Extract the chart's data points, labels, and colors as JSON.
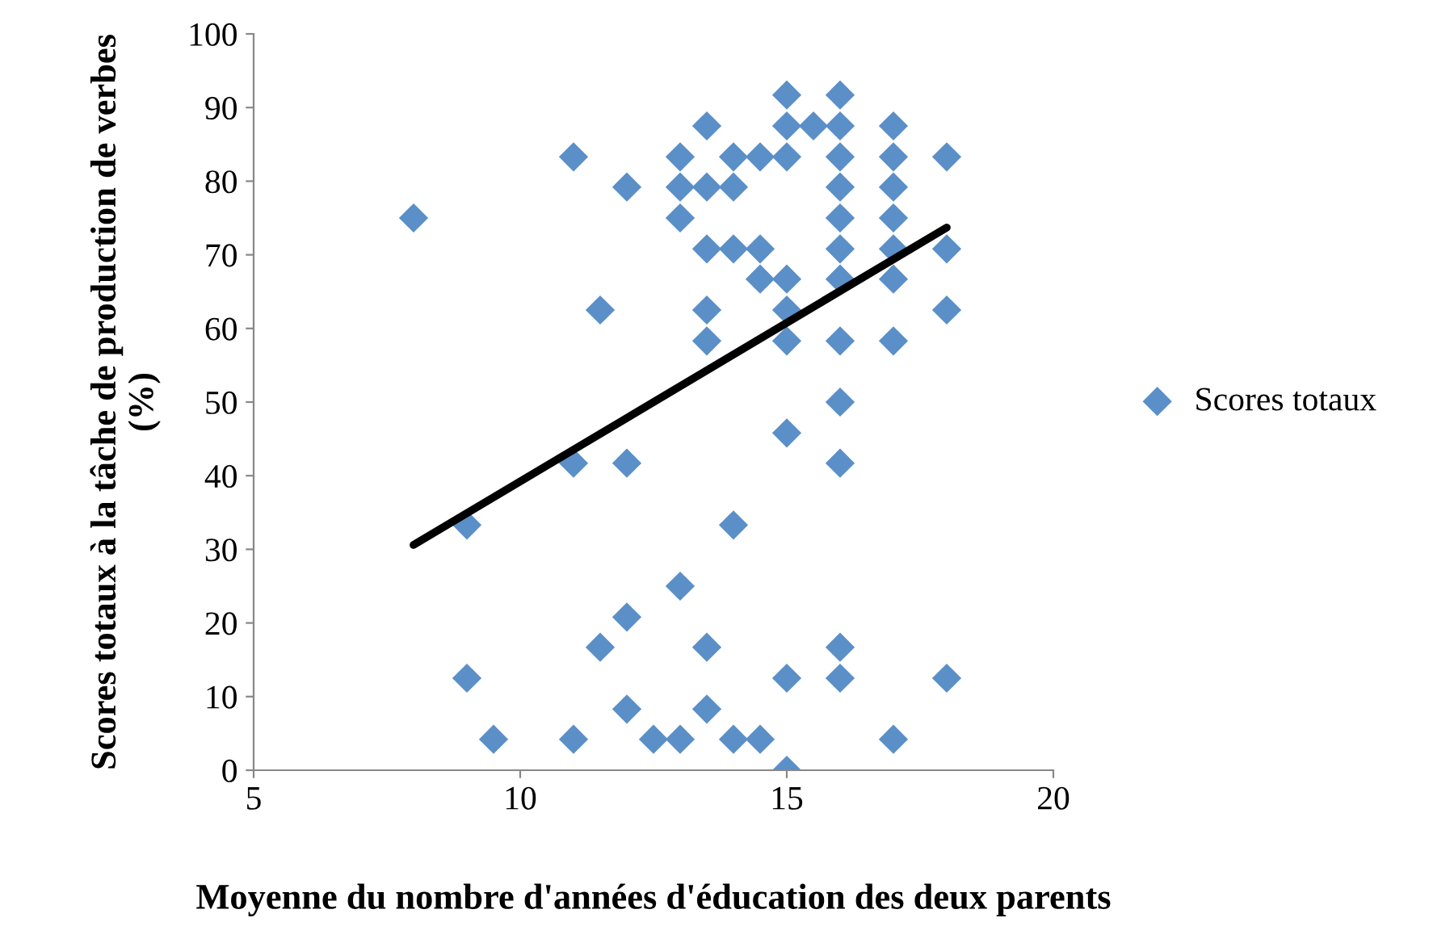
{
  "chart_data": {
    "type": "scatter",
    "xlabel": "Moyenne du nombre d'années d'éducation des deux parents",
    "ylabel": "Scores totaux à la tâche de production de verbes (%)",
    "xlim": [
      5,
      20
    ],
    "xticks": [
      5,
      10,
      15,
      20
    ],
    "ylim": [
      0,
      100
    ],
    "yticks": [
      0,
      10,
      20,
      30,
      40,
      50,
      60,
      70,
      80,
      90,
      100
    ],
    "grid": false,
    "legend": "right",
    "series": [
      {
        "name": "Scores totaux",
        "color": "#5b8fc7",
        "marker": "diamond",
        "x": [
          8,
          9,
          9,
          9.5,
          11,
          11,
          11,
          11.5,
          11.5,
          12,
          12,
          12,
          12,
          12.5,
          13,
          13,
          13,
          13,
          13,
          13.5,
          13.5,
          13.5,
          13.5,
          13.5,
          13.5,
          13.5,
          14,
          14,
          14,
          14,
          14,
          14.5,
          14.5,
          14.5,
          14.5,
          15,
          15,
          15,
          15,
          15,
          15,
          15,
          15,
          15,
          15.5,
          16,
          16,
          16,
          16,
          16,
          16,
          16,
          16,
          16,
          16,
          16,
          16,
          17,
          17,
          17,
          17,
          17,
          17,
          17,
          17,
          18,
          18,
          18,
          18
        ],
        "values": [
          75,
          33.3,
          12.5,
          4.2,
          83.3,
          41.7,
          4.2,
          62.5,
          16.7,
          79.2,
          41.7,
          20.8,
          8.3,
          4.2,
          83.3,
          79.2,
          75,
          25,
          4.2,
          87.5,
          79.2,
          70.8,
          62.5,
          58.3,
          16.7,
          8.3,
          83.3,
          79.2,
          70.8,
          33.3,
          4.2,
          83.3,
          70.8,
          66.7,
          4.2,
          91.7,
          87.5,
          83.3,
          66.7,
          62.5,
          58.3,
          45.8,
          12.5,
          0,
          87.5,
          91.7,
          87.5,
          83.3,
          79.2,
          75,
          70.8,
          66.7,
          58.3,
          50,
          41.7,
          16.7,
          12.5,
          87.5,
          83.3,
          79.2,
          75,
          70.8,
          66.7,
          58.3,
          4.2,
          83.3,
          70.8,
          62.5,
          12.5
        ]
      },
      {
        "color": "#000000",
        "type": "line",
        "marker": "none",
        "x": [
          8,
          18
        ],
        "values": [
          30.6,
          73.7
        ]
      }
    ]
  }
}
